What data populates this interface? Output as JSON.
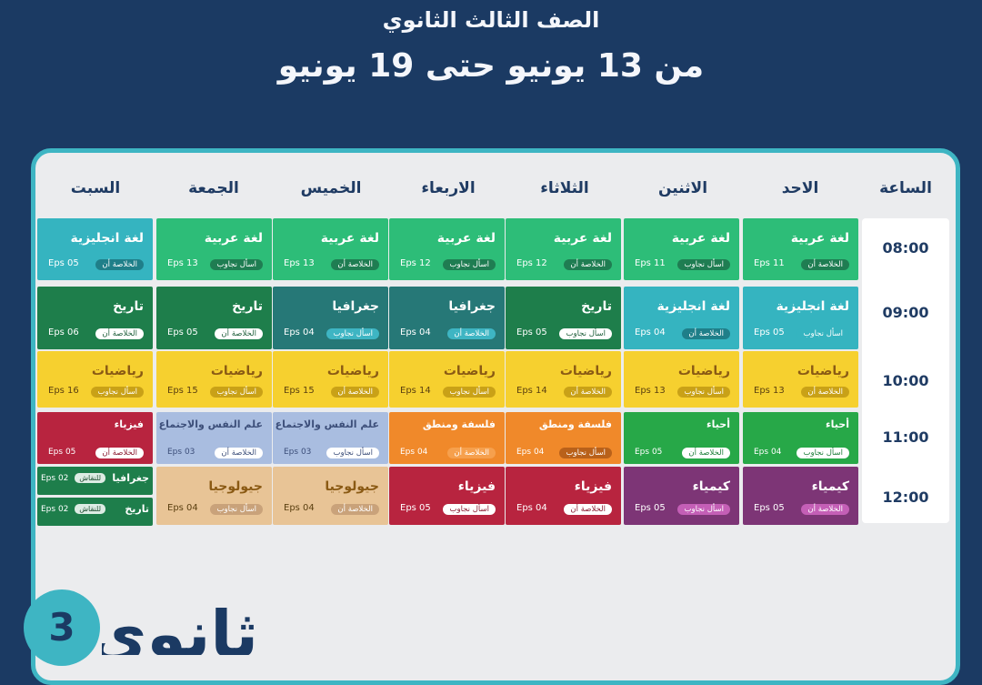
{
  "title": "الصف الثالث الثانوي",
  "subtitle": "من 13 يونيو حتى 19 يونيو",
  "time_header": "الساعة",
  "badge_number": "3",
  "logo_text": "ثانوي",
  "days": [
    "الاحد",
    "الاثنين",
    "الثلاثاء",
    "الاربعاء",
    "الخميس",
    "الجمعة",
    "السبت"
  ],
  "times": [
    "08:00",
    "09:00",
    "10:00",
    "11:00",
    "12:00"
  ],
  "colors": {
    "arabic": "#2dbd78",
    "english": "#35b4c0",
    "history": "#1e7e4b",
    "geography": "#267877",
    "math": "#f6d02f",
    "biology": "#27a848",
    "chemistry": "#7d3576",
    "physics": "#b8243f",
    "philosophy": "#f0892a",
    "psychology": "#a9bde0",
    "geology": "#e8c496"
  },
  "schedule": {
    "r0": [
      {
        "subject": "لغة عربية",
        "eps": "Eps 11",
        "tag": "الخلاصة أن",
        "color": "#2dbd78",
        "tag_bg": "#1f7d52",
        "tag_fg": "#ffffff"
      },
      {
        "subject": "لغة عربية",
        "eps": "Eps 11",
        "tag": "اسأل نجاوب",
        "color": "#2dbd78",
        "tag_bg": "#1f7d52",
        "tag_fg": "#ffffff"
      },
      {
        "subject": "لغة عربية",
        "eps": "Eps 12",
        "tag": "الخلاصة أن",
        "color": "#2dbd78",
        "tag_bg": "#1f7d52",
        "tag_fg": "#ffffff"
      },
      {
        "subject": "لغة عربية",
        "eps": "Eps 12",
        "tag": "اسأل نجاوب",
        "color": "#2dbd78",
        "tag_bg": "#1f7d52",
        "tag_fg": "#ffffff"
      },
      {
        "subject": "لغة عربية",
        "eps": "Eps 13",
        "tag": "الخلاصة أن",
        "color": "#2dbd78",
        "tag_bg": "#1f7d52",
        "tag_fg": "#ffffff"
      },
      {
        "subject": "لغة عربية",
        "eps": "Eps 13",
        "tag": "اسأل نجاوب",
        "color": "#2dbd78",
        "tag_bg": "#1f7d52",
        "tag_fg": "#ffffff"
      },
      {
        "subject": "لغة انجليزية",
        "eps": "Eps 05",
        "tag": "الخلاصة أن",
        "color": "#35b4c0",
        "tag_bg": "#1f7f89",
        "tag_fg": "#ffffff"
      }
    ],
    "r1": [
      {
        "subject": "لغة انجليزية",
        "eps": "Eps 05",
        "tag": "اسأل نجاوب",
        "color": "#35b4c0",
        "tag_bg": "#35b4c0",
        "tag_fg": "#ffffff"
      },
      {
        "subject": "لغة انجليزية",
        "eps": "Eps 04",
        "tag": "الخلاصة أن",
        "color": "#35b4c0",
        "tag_bg": "#1f7f89",
        "tag_fg": "#ffffff"
      },
      {
        "subject": "تاريخ",
        "eps": "Eps 05",
        "tag": "اسأل نجاوب",
        "color": "#1e7e4b",
        "tag_bg": "#ffffff",
        "tag_fg": "#1e5e3a"
      },
      {
        "subject": "جغرافيا",
        "eps": "Eps 04",
        "tag": "الخلاصة أن",
        "color": "#267877",
        "tag_bg": "#3eb5c3",
        "tag_fg": "#ffffff"
      },
      {
        "subject": "جغرافيا",
        "eps": "Eps 04",
        "tag": "اسأل نجاوب",
        "color": "#267877",
        "tag_bg": "#3eb5c3",
        "tag_fg": "#ffffff"
      },
      {
        "subject": "تاريخ",
        "eps": "Eps 05",
        "tag": "الخلاصة أن",
        "color": "#1e7e4b",
        "tag_bg": "#ffffff",
        "tag_fg": "#1e5e3a"
      },
      {
        "subject": "تاريخ",
        "eps": "Eps 06",
        "tag": "الخلاصة أن",
        "color": "#1e7e4b",
        "tag_bg": "#ffffff",
        "tag_fg": "#1e5e3a"
      }
    ],
    "r2": [
      {
        "subject": "رياضيات",
        "eps": "Eps 13",
        "tag": "الخلاصة أن",
        "color": "#f6d02f",
        "tag_bg": "#c9a117",
        "tag_fg": "#ffffff"
      },
      {
        "subject": "رياضيات",
        "eps": "Eps 13",
        "tag": "اسأل نجاوب",
        "color": "#f6d02f",
        "tag_bg": "#c9a117",
        "tag_fg": "#ffffff"
      },
      {
        "subject": "رياضيات",
        "eps": "Eps 14",
        "tag": "الخلاصة أن",
        "color": "#f6d02f",
        "tag_bg": "#c9a117",
        "tag_fg": "#ffffff"
      },
      {
        "subject": "رياضيات",
        "eps": "Eps 14",
        "tag": "اسأل نجاوب",
        "color": "#f6d02f",
        "tag_bg": "#c9a117",
        "tag_fg": "#ffffff"
      },
      {
        "subject": "رياضيات",
        "eps": "Eps 15",
        "tag": "الخلاصة أن",
        "color": "#f6d02f",
        "tag_bg": "#c9a117",
        "tag_fg": "#ffffff"
      },
      {
        "subject": "رياضيات",
        "eps": "Eps 15",
        "tag": "اسأل نجاوب",
        "color": "#f6d02f",
        "tag_bg": "#c9a117",
        "tag_fg": "#ffffff"
      },
      {
        "subject": "رياضيات",
        "eps": "Eps 16",
        "tag": "اسأل نجاوب",
        "color": "#f6d02f",
        "tag_bg": "#c9a117",
        "tag_fg": "#ffffff"
      }
    ],
    "r3": [
      {
        "subject": "أحياء",
        "eps": "Eps 04",
        "tag": "اسأل نجاوب",
        "color": "#27a848",
        "tag_bg": "#ffffff",
        "tag_fg": "#1e7e3a"
      },
      {
        "subject": "أحياء",
        "eps": "Eps 05",
        "tag": "الخلاصة أن",
        "color": "#27a848",
        "tag_bg": "#ffffff",
        "tag_fg": "#1e7e3a"
      },
      {
        "subject": "فلسفة ومنطق",
        "eps": "Eps 04",
        "tag": "اسأل نجاوب",
        "color": "#f0892a",
        "tag_bg": "#b9611a",
        "tag_fg": "#ffffff"
      },
      {
        "subject": "فلسفة ومنطق",
        "eps": "Eps 04",
        "tag": "الخلاصة أن",
        "color": "#f0892a",
        "tag_bg": "#f6a04d",
        "tag_fg": "#ffffff"
      },
      {
        "subject": "علم النفس والاجتماع",
        "eps": "Eps 03",
        "tag": "اسأل نجاوب",
        "color": "#a9bde0",
        "tag_bg": "#ffffff",
        "tag_fg": "#3d4f7a"
      },
      {
        "subject": "علم النفس والاجتماع",
        "eps": "Eps 03",
        "tag": "الخلاصة أن",
        "color": "#a9bde0",
        "tag_bg": "#ffffff",
        "tag_fg": "#3d4f7a"
      },
      {
        "subject": "فيزياء",
        "eps": "Eps 05",
        "tag": "الخلاصة أن",
        "color": "#b8243f",
        "tag_bg": "#ffffff",
        "tag_fg": "#8a1a30"
      }
    ],
    "r4": [
      {
        "subject": "كيمياء",
        "eps": "Eps 05",
        "tag": "الخلاصة أن",
        "color": "#7d3576",
        "tag_bg": "#c45fb6",
        "tag_fg": "#ffffff"
      },
      {
        "subject": "كيمياء",
        "eps": "Eps 05",
        "tag": "اسأل نجاوب",
        "color": "#7d3576",
        "tag_bg": "#c45fb6",
        "tag_fg": "#ffffff"
      },
      {
        "subject": "فيزياء",
        "eps": "Eps 04",
        "tag": "الخلاصة أن",
        "color": "#b8243f",
        "tag_bg": "#ffffff",
        "tag_fg": "#8a1a30"
      },
      {
        "subject": "فيزياء",
        "eps": "Eps 05",
        "tag": "اسأل نجاوب",
        "color": "#b8243f",
        "tag_bg": "#ffffff",
        "tag_fg": "#8a1a30"
      },
      {
        "subject": "جيولوجيا",
        "eps": "Eps 04",
        "tag": "الخلاصة أن",
        "color": "#e8c496",
        "tag_bg": "#c9a27a",
        "tag_fg": "#ffffff"
      },
      {
        "subject": "جيولوجيا",
        "eps": "Eps 04",
        "tag": "اسأل نجاوب",
        "color": "#e8c496",
        "tag_bg": "#c9a27a",
        "tag_fg": "#ffffff"
      }
    ],
    "r4_saturday": [
      {
        "subject": "جغرافيا",
        "eps": "Eps 02",
        "tag": "للنقاش",
        "color": "#1e7e4b"
      },
      {
        "subject": "تاريخ",
        "eps": "Eps 02",
        "tag": "للنقاش",
        "color": "#1e7e4b"
      }
    ]
  }
}
